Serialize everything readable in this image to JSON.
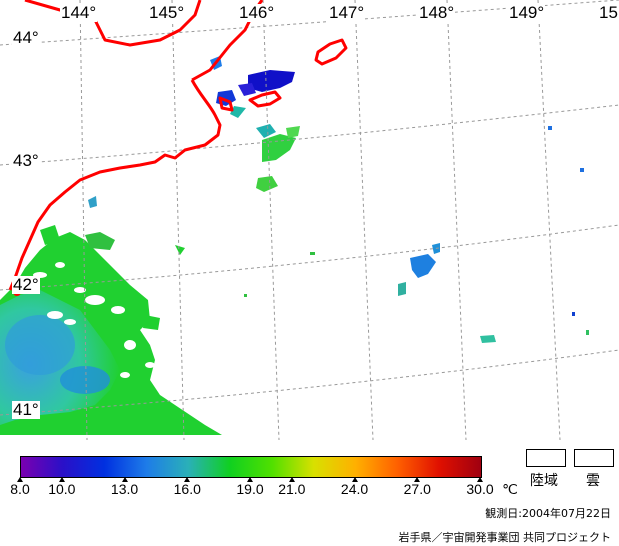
{
  "map": {
    "longitude_labels": [
      "144°",
      "145°",
      "146°",
      "147°",
      "148°",
      "149°",
      "15"
    ],
    "latitude_labels": [
      "44°",
      "43°",
      "42°",
      "41°"
    ]
  },
  "colorbar": {
    "tick_labels": [
      "8.0",
      "10.0",
      "13.0",
      "16.0",
      "19.0",
      "21.0",
      "24.0",
      "27.0",
      "30.0"
    ],
    "unit": "℃",
    "colors": [
      "#7a00b0",
      "#2a10c8",
      "#0030e0",
      "#1e7ce8",
      "#2ab0b8",
      "#10d020",
      "#50e000",
      "#d8e000",
      "#ffb000",
      "#ff6000",
      "#e01000",
      "#a00010"
    ]
  },
  "legend": {
    "land_label": "陸域",
    "cloud_label": "雲"
  },
  "footer": {
    "observation_date": "観測日:2004年07月22日",
    "credit": "岩手県／宇宙開発事業団 共同プロジェクト"
  }
}
